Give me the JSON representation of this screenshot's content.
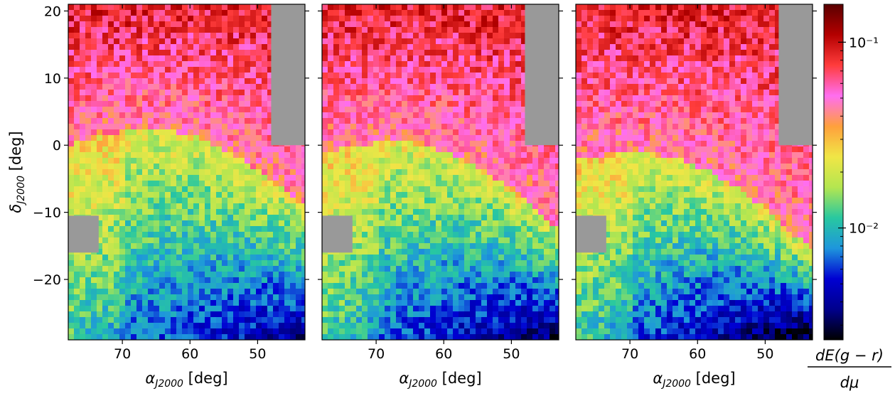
{
  "chart_data": {
    "type": "heatmap",
    "panels": [
      {
        "id": "panel-1",
        "xlabel": "α_J2000 [deg]",
        "ylabel": "δ_J2000 [deg]",
        "xlim": [
          78,
          43
        ],
        "ylim": [
          -29,
          21
        ],
        "xticks": [
          70,
          60,
          50
        ],
        "yticks": [
          20,
          10,
          0,
          -10,
          -20
        ],
        "masked_regions": [
          {
            "ra": [
              48,
              43
            ],
            "dec": [
              0,
              21
            ]
          },
          {
            "ra": [
              78,
              73.5
            ],
            "dec": [
              -16,
              -10.5
            ]
          }
        ]
      },
      {
        "id": "panel-2",
        "xlabel": "α_J2000 [deg]",
        "ylabel": "",
        "xlim": [
          78,
          43
        ],
        "ylim": [
          -29,
          21
        ],
        "xticks": [
          70,
          60,
          50
        ],
        "yticks": [
          20,
          10,
          0,
          -10,
          -20
        ],
        "masked_regions": [
          {
            "ra": [
              48,
              43
            ],
            "dec": [
              0,
              21
            ]
          },
          {
            "ra": [
              78,
              73.5
            ],
            "dec": [
              -16,
              -10.5
            ]
          }
        ]
      },
      {
        "id": "panel-3",
        "xlabel": "α_J2000 [deg]",
        "ylabel": "",
        "xlim": [
          78,
          43
        ],
        "ylim": [
          -29,
          21
        ],
        "xticks": [
          70,
          60,
          50
        ],
        "yticks": [
          20,
          10,
          0,
          -10,
          -20
        ],
        "masked_regions": [
          {
            "ra": [
              48,
              43
            ],
            "dec": [
              0,
              21
            ]
          },
          {
            "ra": [
              78,
              73.5
            ],
            "dec": [
              -16,
              -10.5
            ]
          }
        ]
      }
    ],
    "colorbar": {
      "scale": "log",
      "range": [
        0.0025,
        0.16
      ],
      "label": "dE(g − r) / dμ",
      "ticks": [
        {
          "value": 0.1,
          "label": "10⁻¹"
        },
        {
          "value": 0.01,
          "label": "10⁻²"
        }
      ],
      "colormap_stops": [
        "#000000",
        "#00008c",
        "#0000d2",
        "#1e96dc",
        "#28c8a0",
        "#b4e650",
        "#f0e646",
        "#ffa03c",
        "#ff6ef0",
        "#ff3c3c",
        "#b40000",
        "#5a0000"
      ]
    },
    "grid": false
  },
  "labels": {
    "xlabel_main": "α",
    "xlabel_sub": "J2000",
    "xlabel_unit": " [deg]",
    "ylabel_main": "δ",
    "ylabel_sub": "J2000",
    "ylabel_unit": " [deg]",
    "cb_numerator": "dE(g − r)",
    "cb_denominator": "dμ"
  }
}
